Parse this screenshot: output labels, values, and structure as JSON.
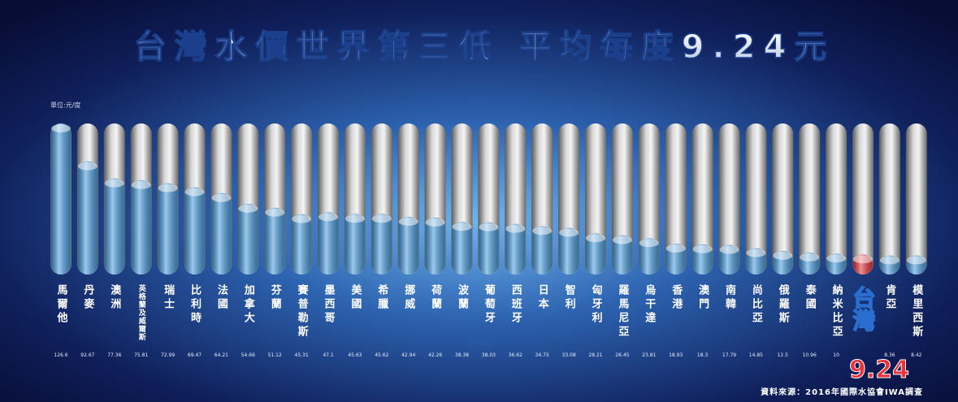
{
  "chart_data": {
    "type": "tube",
    "title": "台灣水價世界第三低 平均每度9.24元",
    "unit": "單位:元/度",
    "source": "資料來源：2016年國際水協會IWA調查",
    "categories": [
      "馬爾他",
      "丹麥",
      "澳洲",
      "英格蘭及威爾斯",
      "瑞士",
      "比利時",
      "法國",
      "加拿大",
      "芬蘭",
      "賽普勒斯",
      "墨西哥",
      "美國",
      "希臘",
      "挪威",
      "荷蘭",
      "波蘭",
      "葡萄牙",
      "西班牙",
      "日本",
      "智利",
      "匈牙利",
      "羅馬尼亞",
      "烏干達",
      "香港",
      "澳門",
      "南韓",
      "尚比亞",
      "俄羅斯",
      "泰國",
      "納米比亞",
      "台灣",
      "肯亞",
      "模里西斯"
    ],
    "values": [
      126.6,
      92.67,
      77.36,
      75.81,
      72.99,
      69.47,
      64.21,
      54.66,
      51.12,
      45.31,
      47.1,
      45.63,
      45.62,
      42.94,
      42.26,
      38.38,
      38.03,
      36.62,
      34.75,
      33.08,
      28.21,
      26.45,
      23.81,
      18.93,
      18.3,
      17.79,
      14.85,
      12.5,
      10.96,
      10,
      9.24,
      8.36,
      8.42
    ],
    "colors": [
      "#4a9ee0",
      "#4a9ee0",
      "#4a9ee0",
      "#4a9ee0",
      "#4a9ee0",
      "#4a9ee0",
      "#4a9ee0",
      "#4a9ee0",
      "#4a9ee0",
      "#4a9ee0",
      "#4a9ee0",
      "#4a9ee0",
      "#4a9ee0",
      "#4a9ee0",
      "#4a9ee0",
      "#4a9ee0",
      "#4a9ee0",
      "#4a9ee0",
      "#4a9ee0",
      "#4a9ee0",
      "#4a9ee0",
      "#4a9ee0",
      "#4a9ee0",
      "#4a9ee0",
      "#4a9ee0",
      "#4a9ee0",
      "#4a9ee0",
      "#4a9ee0",
      "#4a9ee0",
      "#4a9ee0",
      "#e8323c",
      "#4a9ee0",
      "#4a9ee0"
    ]
  }
}
